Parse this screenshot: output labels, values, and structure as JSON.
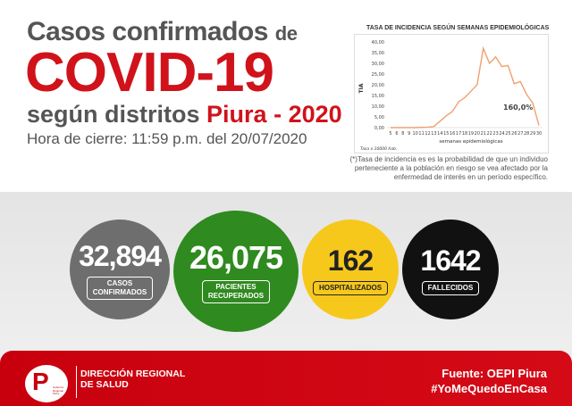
{
  "header": {
    "line1": "Casos confirmados",
    "line1_suffix": "de",
    "line2": "COVID-19",
    "line3": "según distritos",
    "line3_accent": "Piura - 2020",
    "closing": "Hora de cierre: 11:59 p.m. del 20/07/2020"
  },
  "chart_data": {
    "type": "line",
    "title": "TASA DE INCIDENCIA SEGÚN SEMANAS EPIDEMIOLÓGICAS",
    "xlabel": "semanas epidemiológicas",
    "ylabel": "TIA",
    "ylim": [
      0,
      40
    ],
    "yticks": [
      "0,00",
      "5,00",
      "10,00",
      "15,00",
      "20,00",
      "25,00",
      "30,00",
      "35,00",
      "40,00"
    ],
    "categories": [
      "5",
      "6",
      "8",
      "9",
      "10",
      "11",
      "12",
      "13",
      "14",
      "15",
      "16",
      "17",
      "18",
      "19",
      "20",
      "21",
      "22",
      "23",
      "24",
      "25",
      "26",
      "27",
      "28",
      "29",
      "30"
    ],
    "values": [
      0,
      0,
      0,
      0,
      0,
      0.1,
      0.2,
      0.5,
      3,
      5.5,
      7.5,
      12,
      14,
      17,
      20,
      37,
      30,
      33,
      28.5,
      29,
      20.5,
      21.5,
      15.5,
      11.5,
      1
    ],
    "annotation": "160,0%",
    "footnote": "Tasa x 10000 hab.",
    "color": "#f0a070"
  },
  "note": "(*)Tasa de incidencia es es la probabilidad de que un individuo perteneciente a la población en riesgo se vea afectado por la enfermedad de interés en un período específico.",
  "stats": [
    {
      "value": "32,894",
      "label1": "CASOS",
      "label2": "CONFIRMADOS",
      "color": "#6e6e6e"
    },
    {
      "value": "26,075",
      "label1": "PACIENTES",
      "label2": "RECUPERADOS",
      "color": "#2f8a1f"
    },
    {
      "value": "162",
      "label1": "HOSPITALIZADOS",
      "label2": "",
      "color": "#f7c81c"
    },
    {
      "value": "1642",
      "label1": "FALLECIDOS",
      "label2": "",
      "color": "#111111"
    }
  ],
  "footer": {
    "logo_letter": "P",
    "logo_text": "Gobierno Regional Piura",
    "org1": "DIRECCIÓN REGIONAL",
    "org2": "DE SALUD",
    "source": "Fuente: OEPI Piura",
    "hashtag": "#YoMeQuedoEnCasa"
  }
}
